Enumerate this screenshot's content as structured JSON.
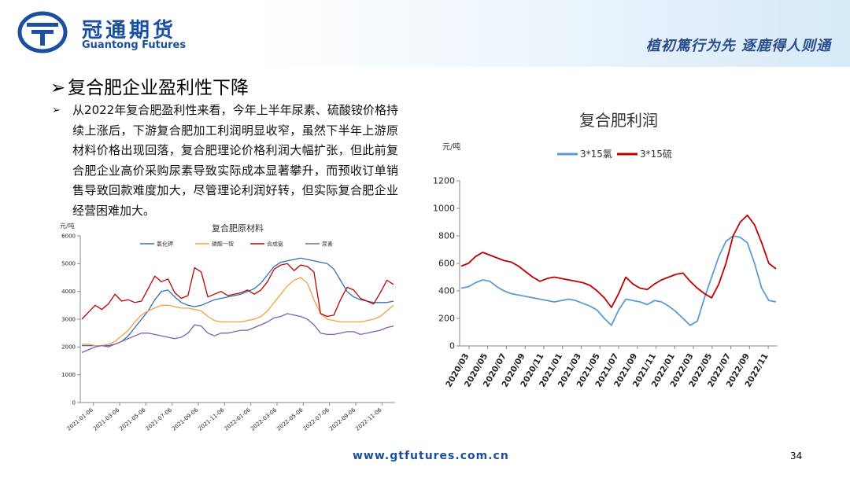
{
  "header": {
    "company_cn": "冠通期货",
    "company_en": "Guantong Futures",
    "slogan": "植初篤行为先  逐鹿得人则通"
  },
  "slide": {
    "title": "复合肥企业盈利性下降",
    "paragraph": "从2022年复合肥盈利性来看，今年上半年尿素、硫酸铵价格持续上涨后，下游复合肥加工利润明显收窄，虽然下半年上游原材料价格出现回落，复合肥理论价格利润大幅扩张，但此前复合肥企业高价采购尿素导致实际成本显著攀升，而预收订单销售导致回款难度加大，尽管理论利润好转，但实际复合肥企业经营困难加大。"
  },
  "footer": {
    "website": "www.gtfutures.com.cn",
    "page_number": "34"
  },
  "colors": {
    "brand": "#1b4fa0",
    "blue_series": "#2f6fbf",
    "orange_series": "#f0a040",
    "red_series": "#c00000",
    "purple_series": "#7e5fb0",
    "light_blue_series": "#5b9bd5"
  },
  "chart_data": [
    {
      "type": "line",
      "title": "复合肥原材料",
      "ylabel": "元/吨",
      "ylim": [
        0,
        6000
      ],
      "yticks": [
        0,
        1000,
        2000,
        3000,
        4000,
        5000,
        6000
      ],
      "x_tick_labels": [
        "2021-01-06",
        "2021-03-06",
        "2021-05-06",
        "2021-07-06",
        "2021-09-06",
        "2021-11-06",
        "2022-01-06",
        "2022-03-06",
        "2022-05-06",
        "2022-07-06",
        "2022-09-06",
        "2022-11-06"
      ],
      "legend_position": "top",
      "grid": false,
      "series": [
        {
          "name": "氯化钾",
          "color": "#2f6fbf",
          "values": [
            2050,
            2050,
            2050,
            2050,
            2050,
            2100,
            2200,
            2400,
            2700,
            3000,
            3300,
            3700,
            4000,
            4050,
            3800,
            3600,
            3500,
            3450,
            3500,
            3600,
            3700,
            3750,
            3800,
            3850,
            3900,
            4000,
            4100,
            4300,
            4600,
            4900,
            5050,
            5100,
            5150,
            5200,
            5150,
            5100,
            5050,
            5000,
            4800,
            4400,
            4000,
            3800,
            3700,
            3650,
            3600,
            3600,
            3600,
            3650
          ]
        },
        {
          "name": "磷酸一铵",
          "color": "#f0a040",
          "values": [
            2100,
            2100,
            2050,
            2050,
            2100,
            2200,
            2400,
            2600,
            2900,
            3150,
            3300,
            3400,
            3500,
            3500,
            3450,
            3400,
            3400,
            3350,
            3300,
            3100,
            2950,
            2900,
            2900,
            2900,
            2900,
            2950,
            3000,
            3100,
            3300,
            3600,
            3900,
            4200,
            4400,
            4500,
            4300,
            3700,
            3200,
            3000,
            2950,
            2900,
            2900,
            2900,
            2900,
            2950,
            3000,
            3100,
            3300,
            3500
          ]
        },
        {
          "name": "合成氨",
          "color": "#c00000",
          "values": [
            3000,
            3250,
            3500,
            3350,
            3550,
            3900,
            3650,
            3700,
            3600,
            3650,
            4100,
            4550,
            4350,
            4450,
            3950,
            3750,
            3850,
            4850,
            4700,
            3800,
            3900,
            4000,
            3850,
            3900,
            3950,
            4050,
            3900,
            4050,
            4350,
            4800,
            4950,
            5000,
            4750,
            4950,
            4900,
            4700,
            3200,
            3100,
            3150,
            3700,
            4150,
            4050,
            3750,
            3650,
            3550,
            3950,
            4400,
            4250
          ]
        },
        {
          "name": "尿素",
          "color": "#7e5fb0",
          "values": [
            1800,
            1900,
            2000,
            2050,
            2000,
            2100,
            2200,
            2300,
            2400,
            2500,
            2500,
            2450,
            2400,
            2350,
            2300,
            2350,
            2500,
            2800,
            2750,
            2500,
            2400,
            2500,
            2500,
            2550,
            2600,
            2600,
            2700,
            2800,
            2900,
            3050,
            3100,
            3200,
            3150,
            3100,
            3000,
            2800,
            2500,
            2450,
            2450,
            2500,
            2550,
            2550,
            2450,
            2500,
            2550,
            2600,
            2700,
            2750
          ]
        }
      ]
    },
    {
      "type": "line",
      "title": "复合肥利润",
      "ylabel": "元/吨",
      "ylim": [
        0,
        1200
      ],
      "yticks": [
        0,
        200,
        400,
        600,
        800,
        1000,
        1200
      ],
      "x_tick_labels": [
        "2020/03",
        "2020/05",
        "2020/07",
        "2020/09",
        "2020/11",
        "2021/01",
        "2021/03",
        "2021/05",
        "2021/07",
        "2021/09",
        "2021/11",
        "2022/01",
        "2022/03",
        "2022/05",
        "2022/07",
        "2022/09",
        "2022/11"
      ],
      "legend_position": "top",
      "grid": false,
      "series": [
        {
          "name": "3*15氯",
          "color": "#5b9bd5",
          "values": [
            420,
            430,
            460,
            480,
            470,
            430,
            400,
            380,
            370,
            360,
            350,
            340,
            330,
            320,
            330,
            340,
            330,
            310,
            290,
            260,
            200,
            150,
            260,
            340,
            330,
            320,
            300,
            330,
            320,
            290,
            250,
            200,
            150,
            180,
            350,
            500,
            650,
            760,
            800,
            790,
            750,
            600,
            420,
            330,
            320
          ]
        },
        {
          "name": "3*15硫",
          "color": "#c00000",
          "values": [
            580,
            600,
            650,
            680,
            660,
            640,
            620,
            610,
            580,
            540,
            500,
            470,
            490,
            500,
            490,
            480,
            470,
            460,
            440,
            400,
            350,
            280,
            380,
            500,
            450,
            420,
            410,
            450,
            480,
            500,
            520,
            530,
            470,
            420,
            380,
            350,
            450,
            600,
            800,
            900,
            950,
            880,
            750,
            600,
            560
          ]
        }
      ]
    }
  ]
}
